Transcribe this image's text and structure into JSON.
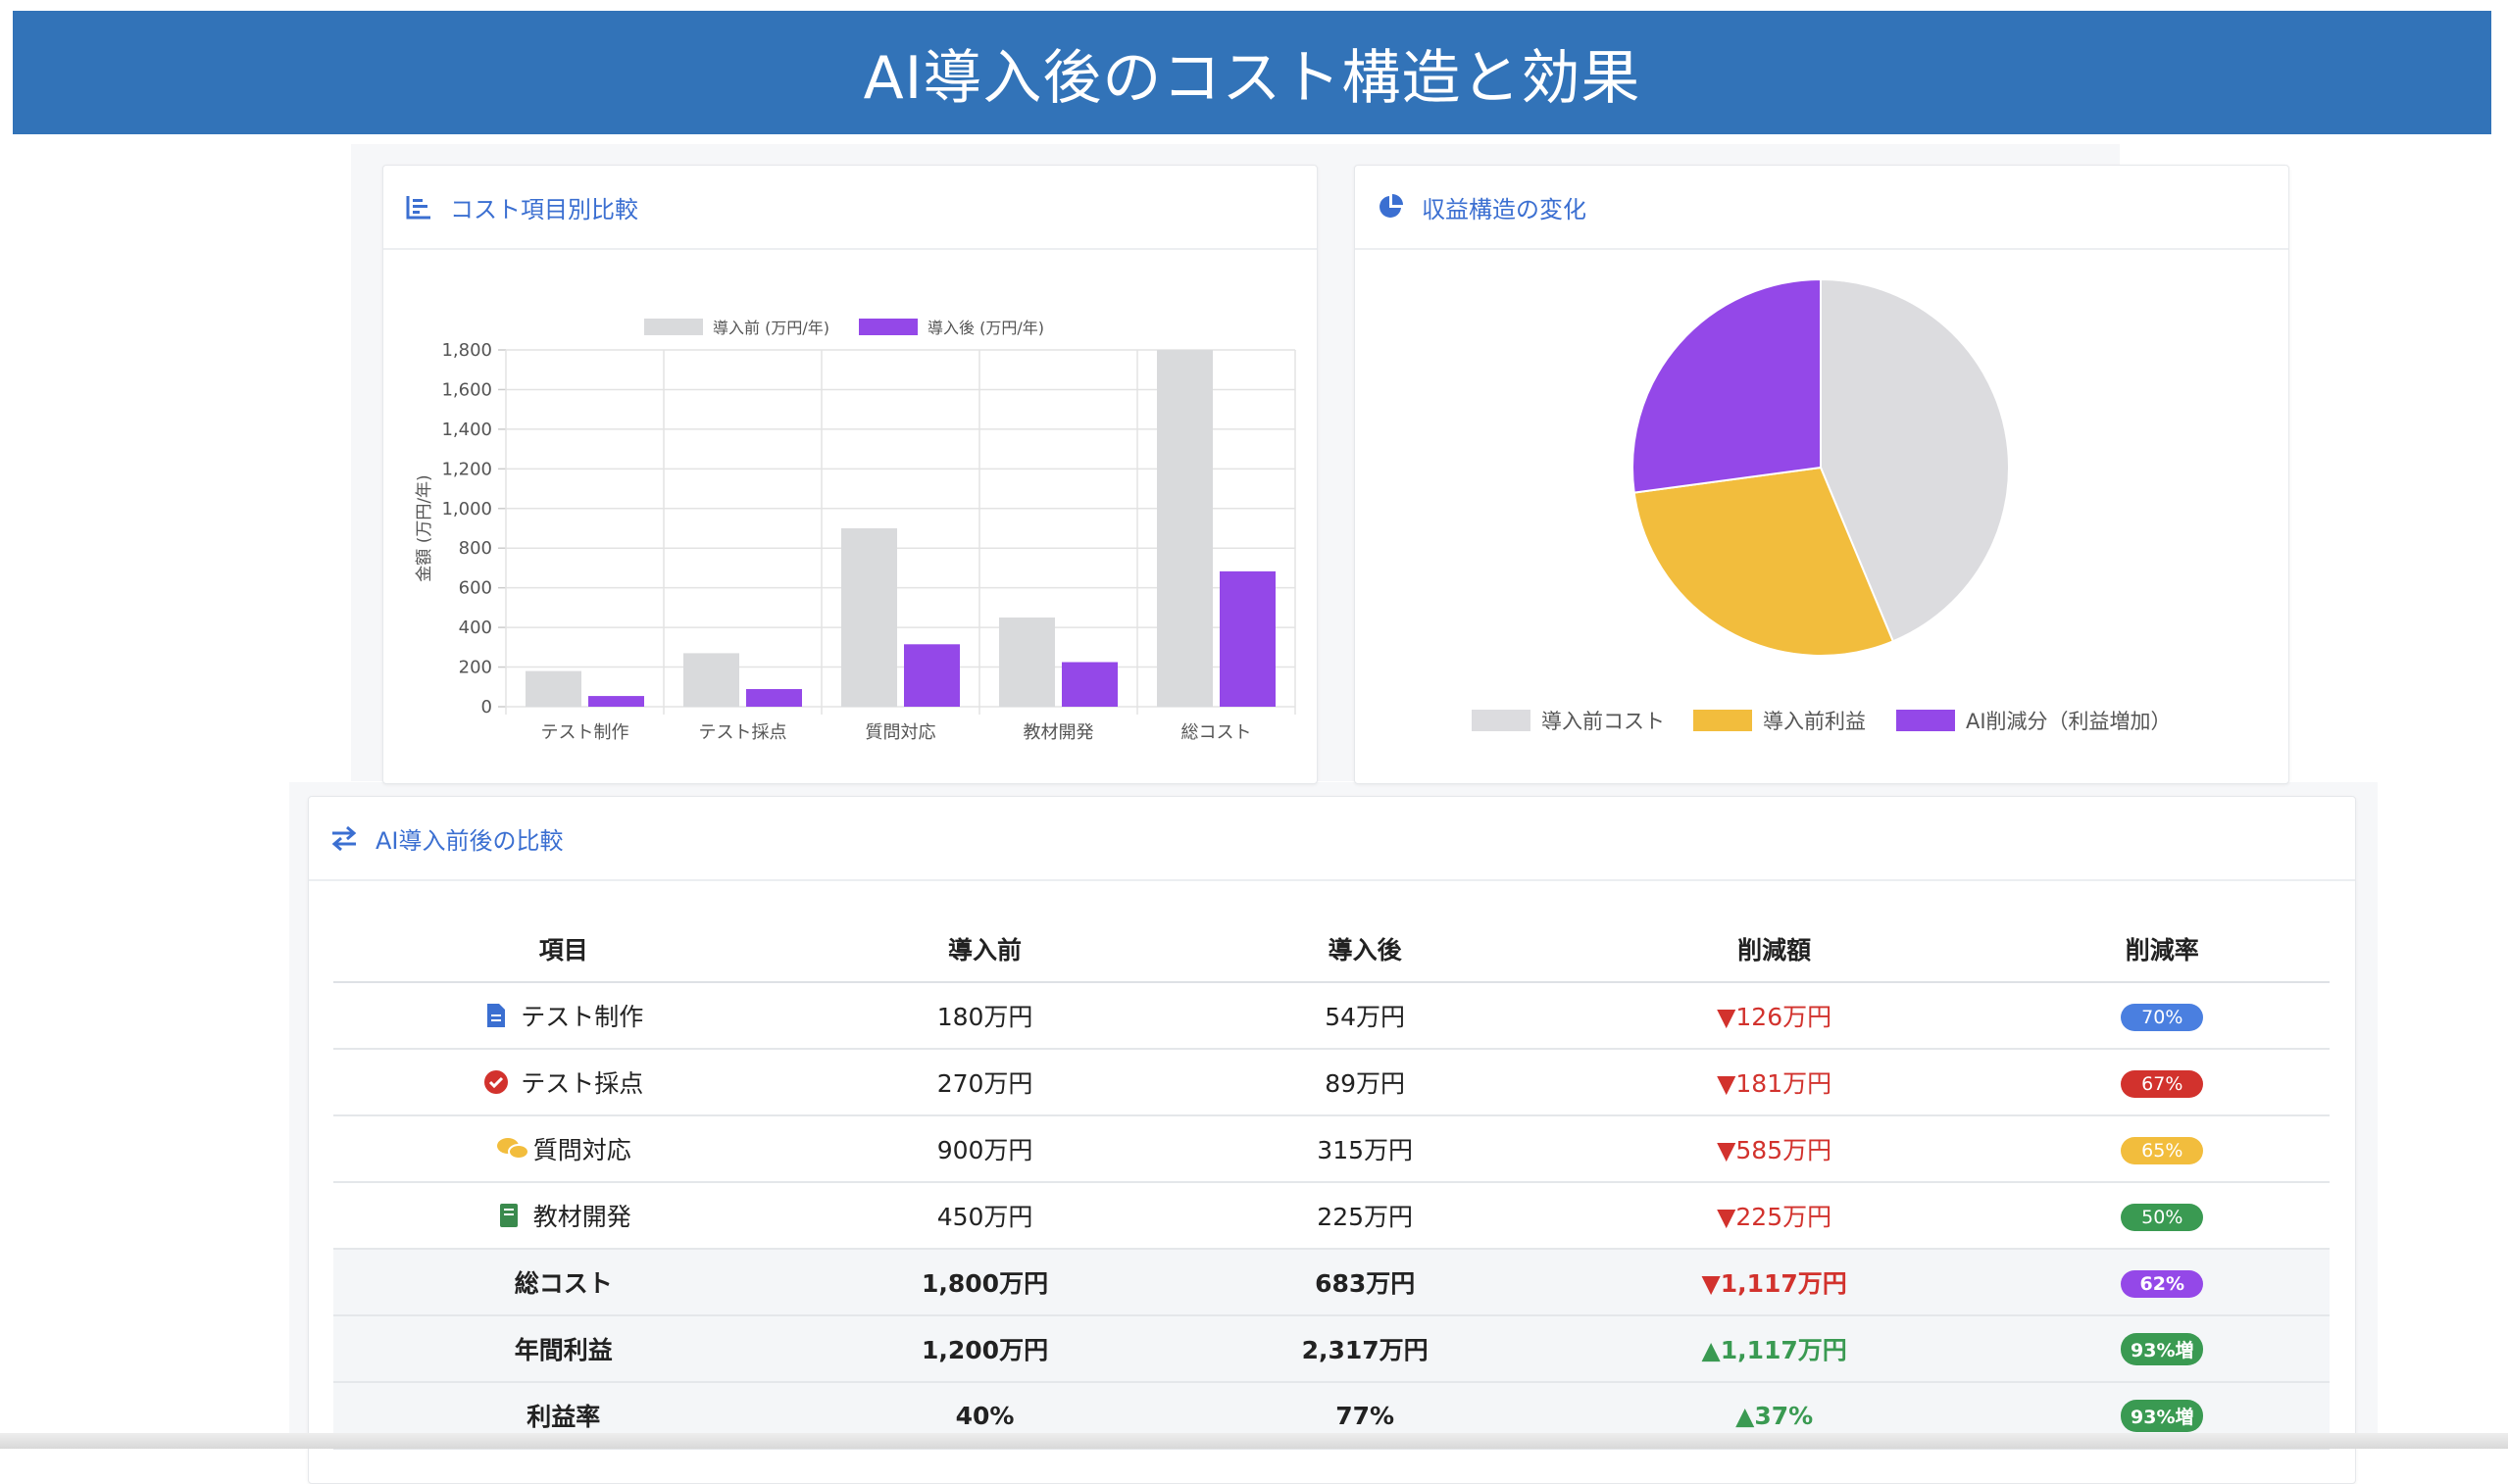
{
  "header": {
    "title": "AI導入後のコスト構造と効果"
  },
  "bar_card": {
    "title": "コスト項目別比較",
    "icon": "bar-chart-icon"
  },
  "pie_card": {
    "title": "収益構造の変化",
    "icon": "pie-chart-icon"
  },
  "table_card": {
    "title": "AI導入前後の比較",
    "icon": "exchange-arrows-icon"
  },
  "chart_data": [
    {
      "type": "bar",
      "title": "",
      "categories": [
        "テスト制作",
        "テスト採点",
        "質問対応",
        "教材開発",
        "総コスト"
      ],
      "series": [
        {
          "name": "導入前 (万円/年)",
          "values": [
            180,
            270,
            900,
            450,
            1800
          ],
          "color": "#d9dadc"
        },
        {
          "name": "導入後 (万円/年)",
          "values": [
            54,
            89,
            315,
            225,
            683
          ],
          "color": "#9448e8"
        }
      ],
      "ylabel": "金額 (万円/年)",
      "xlabel": "",
      "ylim": [
        0,
        1800
      ],
      "yticks": [
        "0",
        "200",
        "400",
        "600",
        "800",
        "1,000",
        "1,200",
        "1,400",
        "1,600",
        "1,800"
      ],
      "grid": true,
      "legend": "top"
    },
    {
      "type": "pie",
      "title": "",
      "labels": [
        "導入前コスト",
        "導入前利益",
        "AI削減分（利益増加）"
      ],
      "values": [
        1800,
        1200,
        1117
      ],
      "colors": [
        "#dcdcdf",
        "#f2bd3d",
        "#9448e8"
      ],
      "legend": "bottom"
    }
  ],
  "table": {
    "headers": [
      "項目",
      "導入前",
      "導入後",
      "削減額",
      "削減率"
    ],
    "rows": [
      {
        "item": "テスト制作",
        "icon": "document-icon",
        "before": "180万円",
        "after": "54万円",
        "diff": "▼126万円",
        "rate": "70%",
        "rate_color": "#4a7fe0",
        "bold": false,
        "dir": "down"
      },
      {
        "item": "テスト採点",
        "icon": "check-circle-icon",
        "before": "270万円",
        "after": "89万円",
        "diff": "▼181万円",
        "rate": "67%",
        "rate_color": "#d2322d",
        "bold": false,
        "dir": "down"
      },
      {
        "item": "質問対応",
        "icon": "chat-bubbles-icon",
        "before": "900万円",
        "after": "315万円",
        "diff": "▼585万円",
        "rate": "65%",
        "rate_color": "#f2bd3d",
        "bold": false,
        "dir": "down"
      },
      {
        "item": "教材開発",
        "icon": "book-icon",
        "before": "450万円",
        "after": "225万円",
        "diff": "▼225万円",
        "rate": "50%",
        "rate_color": "#3a9a52",
        "bold": false,
        "dir": "down"
      },
      {
        "item": "総コスト",
        "icon": "",
        "before": "1,800万円",
        "after": "683万円",
        "diff": "▼1,117万円",
        "rate": "62%",
        "rate_color": "#9448e8",
        "bold": true,
        "dir": "down"
      },
      {
        "item": "年間利益",
        "icon": "",
        "before": "1,200万円",
        "after": "2,317万円",
        "diff": "▲1,117万円",
        "rate": "93%増",
        "rate_color": "#3a9a52",
        "bold": true,
        "dir": "up"
      },
      {
        "item": "利益率",
        "icon": "",
        "before": "40%",
        "after": "77%",
        "diff": "▲37%",
        "rate": "93%増",
        "rate_color": "#3a9a52",
        "bold": true,
        "dir": "up"
      }
    ]
  }
}
